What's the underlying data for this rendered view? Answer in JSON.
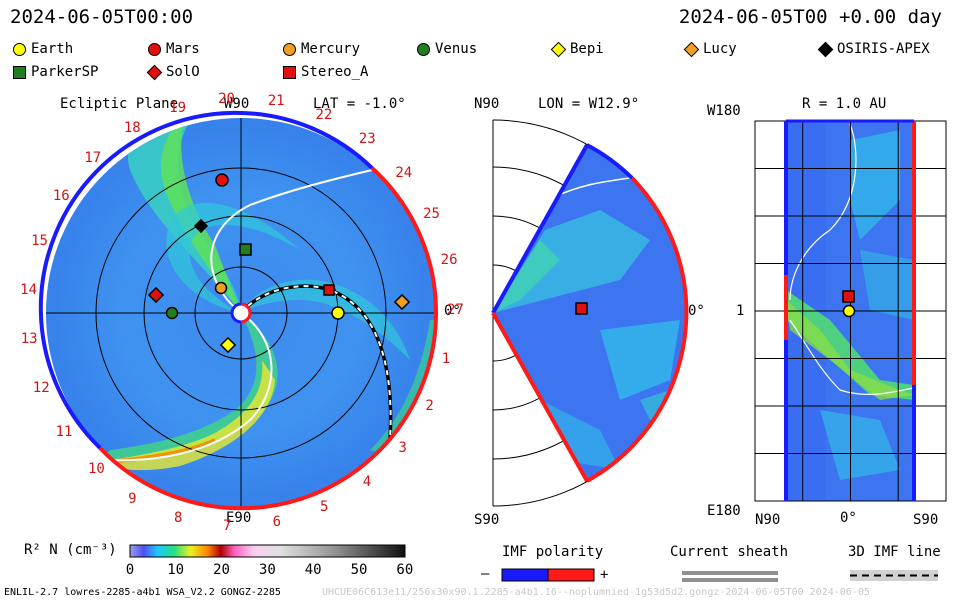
{
  "header": {
    "left_time": "2024-06-05T00:00",
    "right_time": "2024-06-05T00 +0.00 day"
  },
  "legend": [
    {
      "name": "Earth",
      "shape": "circle",
      "color": "#ffff00"
    },
    {
      "name": "Mars",
      "shape": "circle",
      "color": "#e01010"
    },
    {
      "name": "Mercury",
      "shape": "circle",
      "color": "#f0a020"
    },
    {
      "name": "Venus",
      "shape": "circle",
      "color": "#208020"
    },
    {
      "name": "Bepi",
      "shape": "diamond",
      "color": "#ffff00"
    },
    {
      "name": "Lucy",
      "shape": "diamond",
      "color": "#f0a020"
    },
    {
      "name": "OSIRIS-APEX",
      "shape": "diamond",
      "color": "#000000"
    },
    {
      "name": "ParkerSP",
      "shape": "square",
      "color": "#208020"
    },
    {
      "name": "SolO",
      "shape": "diamond",
      "color": "#e01010"
    },
    {
      "name": "Stereo_A",
      "shape": "square",
      "color": "#e01010"
    }
  ],
  "panel1": {
    "title": "Ecliptic Plane",
    "lat": "LAT = -1.0°",
    "top_label": "W90",
    "bottom_label": "E90",
    "right_label": "0°",
    "carrington_ticks": [
      "20",
      "21",
      "22",
      "23",
      "24",
      "25",
      "26",
      "27",
      "1",
      "2",
      "3",
      "4",
      "5",
      "6",
      "7",
      "8",
      "9",
      "10",
      "11",
      "12",
      "13",
      "14",
      "15",
      "16",
      "17",
      "18",
      "19"
    ]
  },
  "panel2": {
    "top_label": "N90",
    "lon": "LON = W12.9°",
    "bottom_label": "S90",
    "right_label": "0°"
  },
  "panel3": {
    "title": "R = 1.0 AU",
    "top_left": "W180",
    "mid_left": "1",
    "bottom_left": "E180",
    "x_labels": [
      "N90",
      "0°",
      "S90"
    ]
  },
  "colorbar": {
    "label": "R² N (cm⁻³)",
    "ticks": [
      "0",
      "10",
      "20",
      "30",
      "40",
      "50",
      "60"
    ],
    "range": [
      0,
      60
    ]
  },
  "keys": {
    "imf_polarity": "IMF polarity",
    "minus": "–",
    "plus": "+",
    "current_sheath": "Current sheath",
    "imf_line": "3D IMF line"
  },
  "footer": {
    "left": "ENLIL-2.7 lowres-2285-a4b1 WSA_V2.2 GONGZ-2285",
    "right": "UHCUE06C613e11/256x30x90.1.2285-a4b1.16--noplumnied-1g53d5d2.gongz-2024-06-05T00 2024-06-05"
  },
  "chart_data": [
    {
      "type": "heatmap",
      "title": "Ecliptic Plane",
      "subtitle": "LAT = -1.0°",
      "objects": [
        {
          "name": "Earth",
          "lon_deg": 0,
          "r_au": 1.0
        },
        {
          "name": "Mars",
          "lon_deg": 95,
          "r_au": 1.4
        },
        {
          "name": "Mercury",
          "lon_deg": 105,
          "r_au": 0.27
        },
        {
          "name": "Venus",
          "lon_deg": 173,
          "r_au": 0.69
        },
        {
          "name": "Bepi",
          "lon_deg": 255,
          "r_au": 0.3
        },
        {
          "name": "Lucy",
          "lon_deg": -3,
          "r_au": 1.6
        },
        {
          "name": "OSIRIS-APEX",
          "lon_deg": 120,
          "r_au": 1.0
        },
        {
          "name": "ParkerSP",
          "lon_deg": 88,
          "r_au": 0.6
        },
        {
          "name": "SolO",
          "lon_deg": 169,
          "r_au": 0.86
        },
        {
          "name": "Stereo_A",
          "lon_deg": 12,
          "r_au": 0.93
        }
      ]
    },
    {
      "type": "heatmap",
      "title": "LON = W12.9°",
      "range_lat": [
        -90,
        90
      ]
    },
    {
      "type": "heatmap",
      "title": "R = 1.0 AU",
      "range_lat": [
        90,
        -90
      ],
      "range_lon": [
        180,
        -180
      ]
    }
  ]
}
